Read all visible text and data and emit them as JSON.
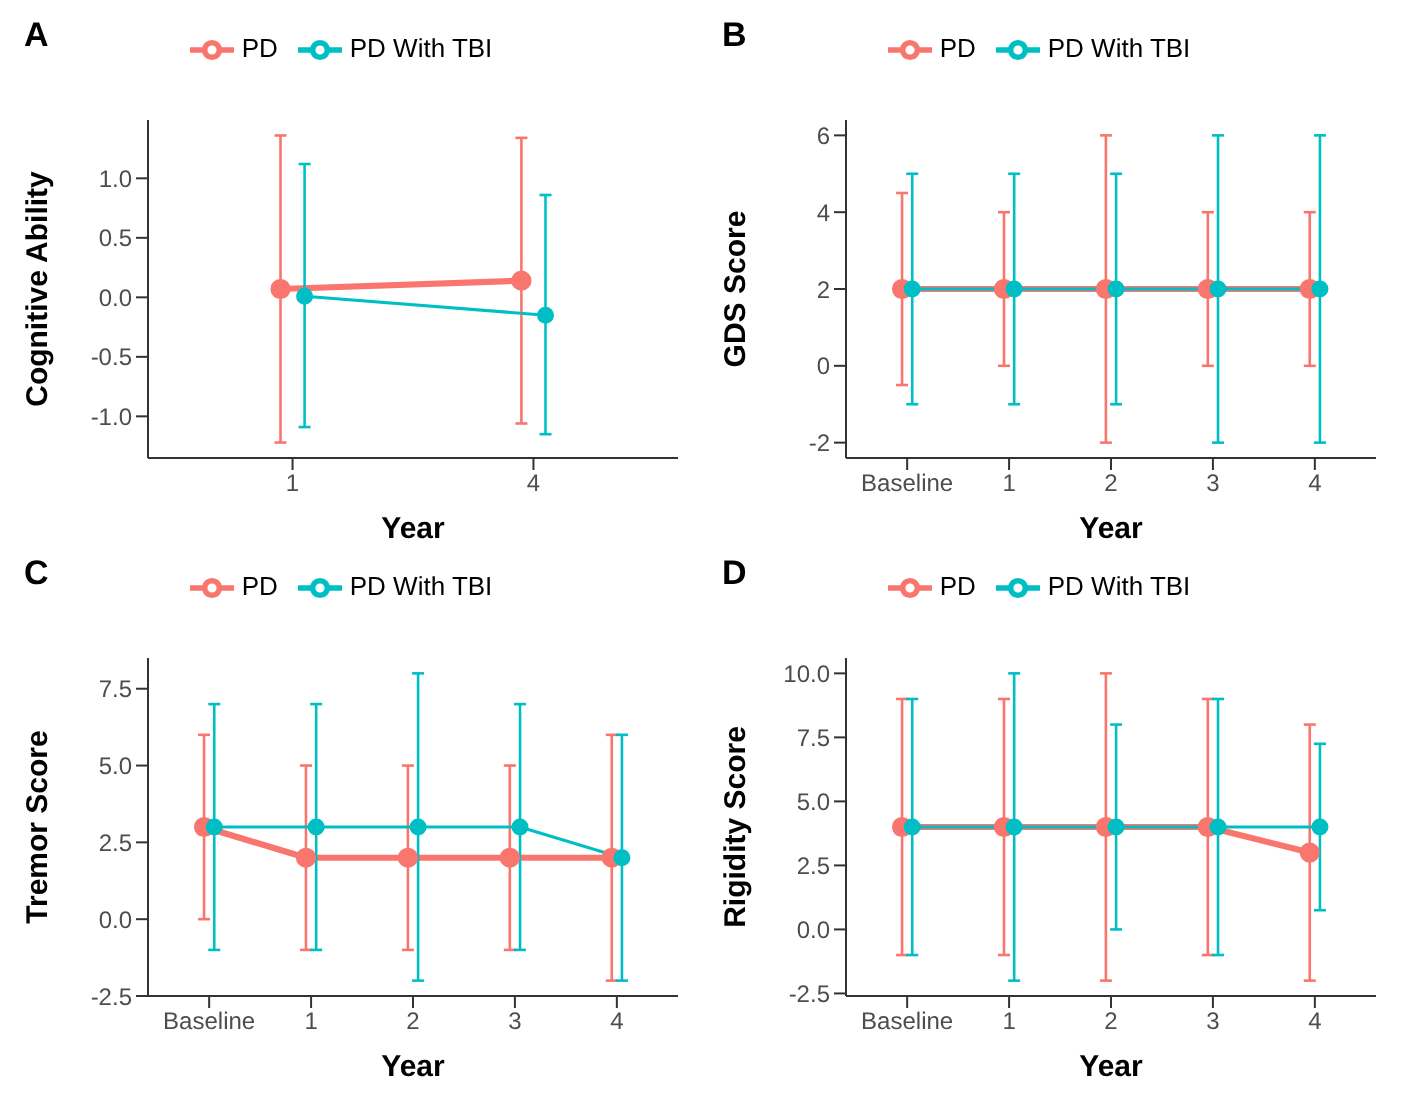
{
  "chart_data": [
    {
      "type": "line",
      "title": "A",
      "xlabel": "Year",
      "ylabel": "Cognitive Ability",
      "categories": [
        "1",
        "4"
      ],
      "ylim": [
        -1.35,
        1.49
      ],
      "yticks": [
        {
          "value": -1,
          "label": "-1.0"
        },
        {
          "value": -0.5,
          "label": "-0.5"
        },
        {
          "value": 0,
          "label": "0.0"
        },
        {
          "value": 0.5,
          "label": "0.5"
        },
        {
          "value": 1,
          "label": "1.0"
        }
      ],
      "legend": "top",
      "grid": false,
      "marker": "circle",
      "line_style": "solid",
      "series": [
        {
          "name": "PD",
          "color": "#f8766d",
          "values": [
            0.07,
            0.14
          ],
          "errors": [
            [
              -1.22,
              1.36
            ],
            [
              -1.06,
              1.34
            ]
          ]
        },
        {
          "name": "PD With TBI",
          "color": "#00bfc4",
          "values": [
            0.01,
            -0.15
          ],
          "errors": [
            [
              -1.09,
              1.12
            ],
            [
              -1.15,
              0.86
            ]
          ]
        }
      ]
    },
    {
      "type": "line",
      "title": "B",
      "xlabel": "Year",
      "ylabel": "GDS Score",
      "categories": [
        "Baseline",
        "1",
        "2",
        "3",
        "4"
      ],
      "ylim": [
        -2.4,
        6.4
      ],
      "yticks": [
        -2,
        0,
        2,
        4,
        6
      ],
      "legend": "top",
      "grid": false,
      "marker": "circle",
      "line_style": "solid",
      "series": [
        {
          "name": "PD",
          "color": "#f8766d",
          "values": [
            2,
            2,
            2,
            2,
            2
          ],
          "errors": [
            [
              -0.5,
              4.5
            ],
            [
              0,
              4
            ],
            [
              -2,
              6
            ],
            [
              0,
              4
            ],
            [
              0,
              4
            ]
          ]
        },
        {
          "name": "PD With TBI",
          "color": "#00bfc4",
          "values": [
            2,
            2,
            2,
            2,
            2
          ],
          "errors": [
            [
              -1,
              5
            ],
            [
              -1,
              5
            ],
            [
              -1,
              5
            ],
            [
              -2,
              6
            ],
            [
              -2,
              6
            ]
          ]
        }
      ]
    },
    {
      "type": "line",
      "title": "C",
      "xlabel": "Year",
      "ylabel": "Tremor Score",
      "categories": [
        "Baseline",
        "1",
        "2",
        "3",
        "4"
      ],
      "ylim": [
        -2.5,
        8.5
      ],
      "yticks": [
        {
          "value": -2.5,
          "label": "-2.5"
        },
        {
          "value": 0,
          "label": "0.0"
        },
        {
          "value": 2.5,
          "label": "2.5"
        },
        {
          "value": 5,
          "label": "5.0"
        },
        {
          "value": 7.5,
          "label": "7.5"
        }
      ],
      "legend": "top",
      "grid": false,
      "marker": "circle",
      "line_style": "solid",
      "series": [
        {
          "name": "PD",
          "color": "#f8766d",
          "values": [
            3,
            2,
            2,
            2,
            2
          ],
          "errors": [
            [
              0,
              6
            ],
            [
              -1,
              5
            ],
            [
              -1,
              5
            ],
            [
              -1,
              5
            ],
            [
              -2,
              6
            ]
          ]
        },
        {
          "name": "PD With TBI",
          "color": "#00bfc4",
          "values": [
            3,
            3,
            3,
            3,
            2
          ],
          "errors": [
            [
              -1,
              7
            ],
            [
              -1,
              7
            ],
            [
              -2,
              8
            ],
            [
              -1,
              7
            ],
            [
              -2,
              6
            ]
          ]
        }
      ]
    },
    {
      "type": "line",
      "title": "D",
      "xlabel": "Year",
      "ylabel": "Rigidity Score",
      "categories": [
        "Baseline",
        "1",
        "2",
        "3",
        "4"
      ],
      "ylim": [
        -2.6,
        10.6
      ],
      "yticks": [
        {
          "value": -2.5,
          "label": "-2.5"
        },
        {
          "value": 0,
          "label": "0.0"
        },
        {
          "value": 2.5,
          "label": "2.5"
        },
        {
          "value": 5,
          "label": "5.0"
        },
        {
          "value": 7.5,
          "label": "7.5"
        },
        {
          "value": 10,
          "label": "10.0"
        }
      ],
      "legend": "top",
      "grid": false,
      "marker": "circle",
      "line_style": "solid",
      "series": [
        {
          "name": "PD",
          "color": "#f8766d",
          "values": [
            4,
            4,
            4,
            4,
            3
          ],
          "errors": [
            [
              -1,
              9
            ],
            [
              -1,
              9
            ],
            [
              -2,
              10
            ],
            [
              -1,
              9
            ],
            [
              -2,
              8
            ]
          ]
        },
        {
          "name": "PD With TBI",
          "color": "#00bfc4",
          "values": [
            4,
            4,
            4,
            4,
            4
          ],
          "errors": [
            [
              -1,
              9
            ],
            [
              -2,
              10
            ],
            [
              0,
              8
            ],
            [
              -1,
              9
            ],
            [
              0.75,
              7.25
            ]
          ]
        }
      ]
    }
  ]
}
